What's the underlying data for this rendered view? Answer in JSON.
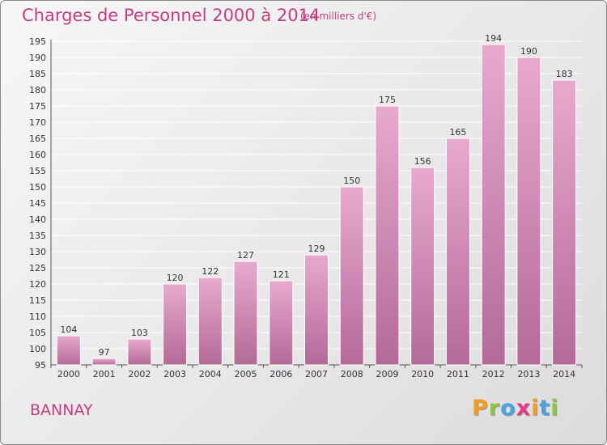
{
  "title": "Charges de Personnel 2000 à 2014",
  "subtitle": "(en milliers d'€)",
  "place_label": "BANNAY",
  "logo": {
    "text": "Proxiti",
    "letters": [
      {
        "char": "P",
        "color": "#f39c20"
      },
      {
        "char": "r",
        "color": "#8cc63f"
      },
      {
        "char": "o",
        "color": "#4aa3df"
      },
      {
        "char": "x",
        "color": "#e5398a"
      },
      {
        "char": "i",
        "color": "#f39c20"
      },
      {
        "char": "t",
        "color": "#4aa3df"
      },
      {
        "char": "i",
        "color": "#8cc63f"
      }
    ]
  },
  "colors": {
    "bar_top": "#e8a9cf",
    "bar_bottom": "#b36a97",
    "text": "#c33d80",
    "grid": "#ffffff"
  },
  "chart_data": {
    "type": "bar",
    "title": "Charges de Personnel 2000 à 2014",
    "subtitle": "(en milliers d'€)",
    "categories": [
      "2000",
      "2001",
      "2002",
      "2003",
      "2004",
      "2005",
      "2006",
      "2007",
      "2008",
      "2009",
      "2010",
      "2011",
      "2012",
      "2013",
      "2014"
    ],
    "values": [
      104,
      97,
      103,
      120,
      122,
      127,
      121,
      129,
      150,
      175,
      156,
      165,
      194,
      190,
      183
    ],
    "ylim": [
      95,
      195
    ],
    "yticks": [
      95,
      100,
      105,
      110,
      115,
      120,
      125,
      130,
      135,
      140,
      145,
      150,
      155,
      160,
      165,
      170,
      175,
      180,
      185,
      190,
      195
    ],
    "grid": true,
    "data_labels": true
  }
}
